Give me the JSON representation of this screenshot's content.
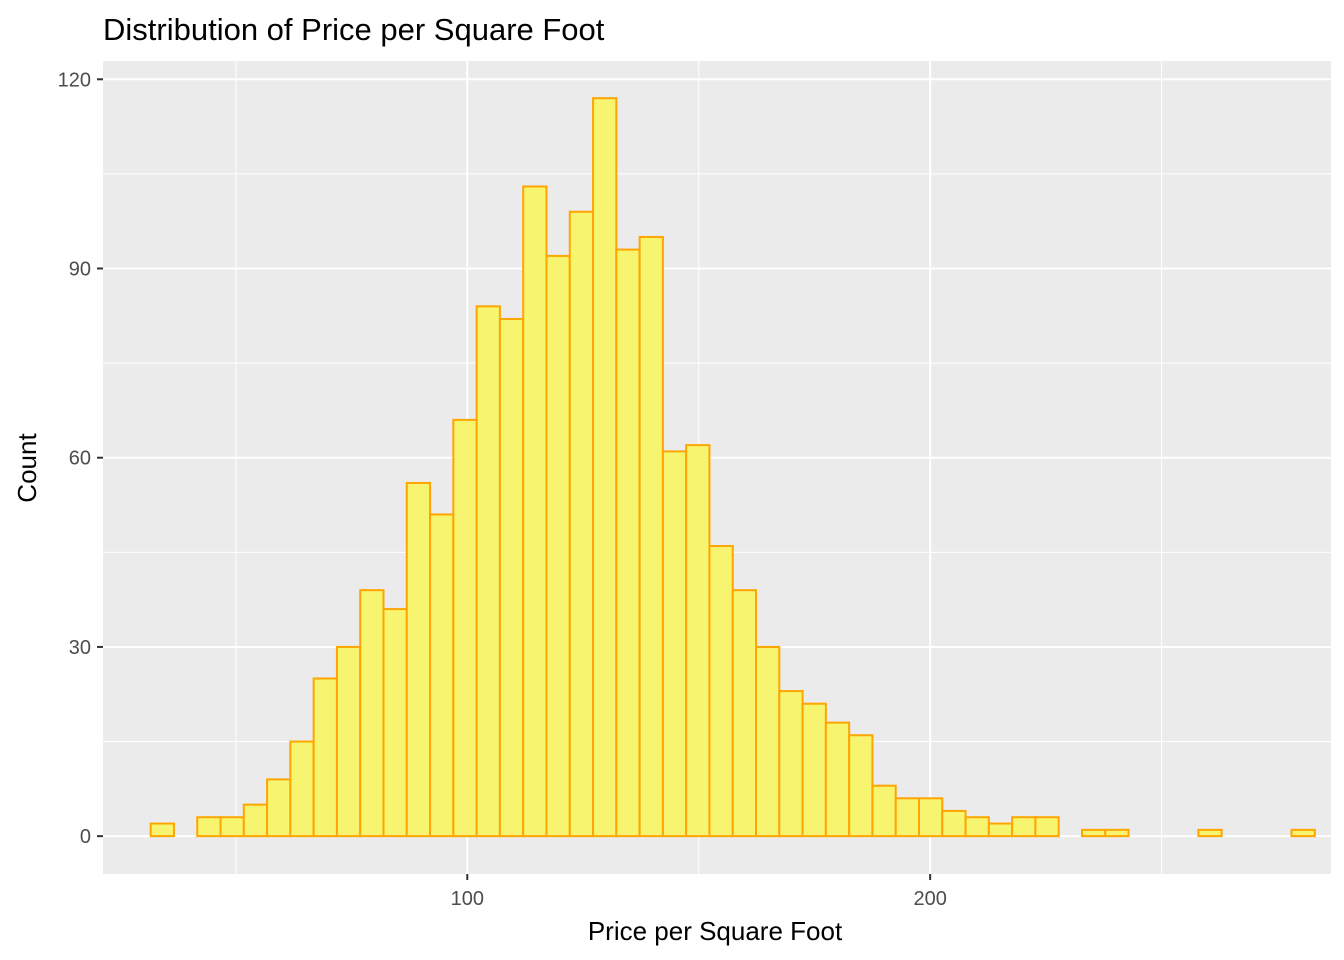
{
  "chart_data": {
    "type": "bar",
    "title": "Distribution of Price per Square Foot",
    "xlabel": "Price per Square Foot",
    "ylabel": "Count",
    "xlim": [
      21.3,
      286.6
    ],
    "ylim": [
      -6.0,
      122.9
    ],
    "x_ticks": [
      100,
      200
    ],
    "x_tick_labels": [
      "100",
      "200"
    ],
    "x_minor_ticks": [
      50,
      150,
      250
    ],
    "y_ticks": [
      0,
      30,
      60,
      90,
      120
    ],
    "y_tick_labels": [
      "0",
      "30",
      "60",
      "90",
      "120"
    ],
    "y_minor_ticks": [
      15,
      45,
      75,
      105
    ],
    "grid": true,
    "legend": "none",
    "bin_width": 5.03,
    "bin_start": 31.6,
    "values": [
      2,
      0,
      3,
      3,
      5,
      9,
      15,
      25,
      30,
      39,
      36,
      56,
      51,
      66,
      84,
      82,
      103,
      92,
      99,
      117,
      93,
      95,
      61,
      62,
      46,
      39,
      30,
      23,
      21,
      18,
      16,
      8,
      6,
      6,
      4,
      3,
      2,
      3,
      3,
      0,
      1,
      1,
      0,
      0,
      0,
      1,
      0,
      0,
      0,
      1
    ],
    "fill_color": "#f7f56f",
    "outline_color": "#ffa500",
    "panel_background": "#ebebeb",
    "grid_color": "#ffffff"
  }
}
